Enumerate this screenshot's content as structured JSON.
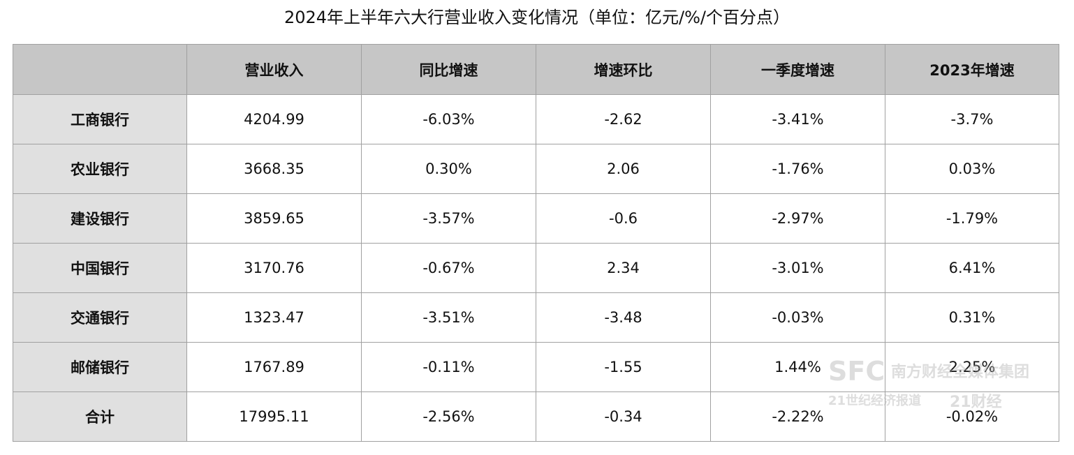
{
  "title": "2024年上半年六大行营业收入变化情况（单位：亿元/%/个百分点）",
  "table": {
    "header": [
      "",
      "营业收入",
      "同比增速",
      "增速环比",
      "一季度增速",
      "2023年增速"
    ],
    "rows": [
      [
        "工商银行",
        "4204.99",
        "-6.03%",
        "-2.62",
        "-3.41%",
        "-3.7%"
      ],
      [
        "农业银行",
        "3668.35",
        "0.30%",
        "2.06",
        "-1.76%",
        "0.03%"
      ],
      [
        "建设银行",
        "3859.65",
        "-3.57%",
        "-0.6",
        "-2.97%",
        "-1.79%"
      ],
      [
        "中国银行",
        "3170.76",
        "-0.67%",
        "2.34",
        "-3.01%",
        "6.41%"
      ],
      [
        "交通银行",
        "1323.47",
        "-3.51%",
        "-3.48",
        "-0.03%",
        "0.31%"
      ],
      [
        "邮储银行",
        "1767.89",
        "-0.11%",
        "-1.55",
        "1.44%",
        "2.25%"
      ],
      [
        "合计",
        "17995.11",
        "-2.56%",
        "-0.34",
        "-2.22%",
        "-0.02%"
      ]
    ]
  },
  "watermark": [
    "SFC",
    "南方财经全媒体集团",
    "21世纪经济报道",
    "21财经"
  ]
}
